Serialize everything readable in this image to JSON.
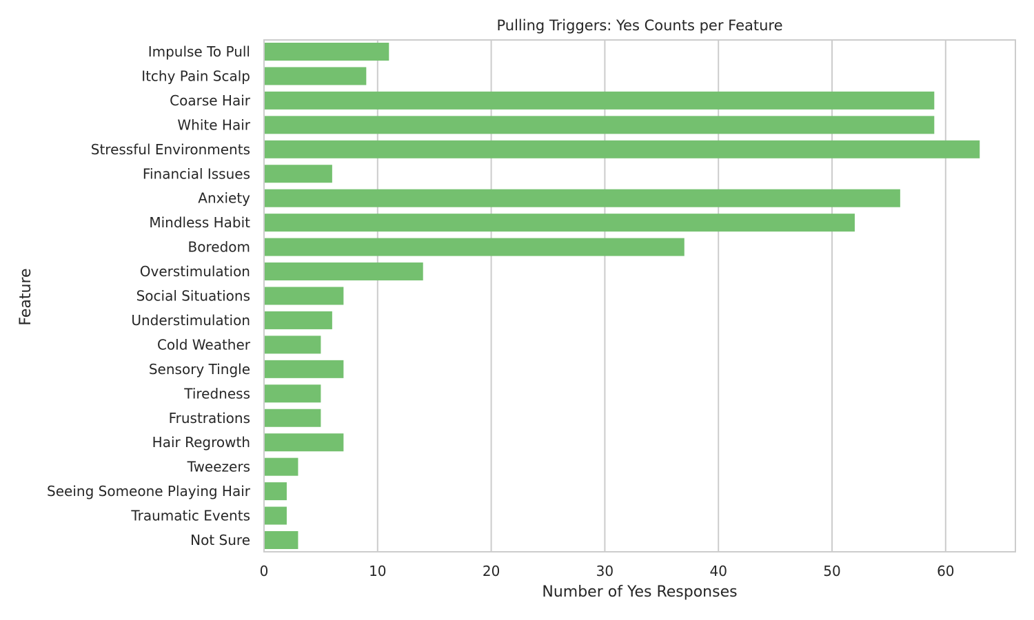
{
  "chart_data": {
    "type": "bar",
    "orientation": "horizontal",
    "title": "Pulling Triggers: Yes Counts per Feature",
    "xlabel": "Number of Yes Responses",
    "ylabel": "Feature",
    "xlim": [
      0,
      66
    ],
    "xticks": [
      0,
      10,
      20,
      30,
      40,
      50,
      60
    ],
    "grid": "vertical",
    "bar_color": "#74c06f",
    "categories": [
      "Impulse To Pull",
      "Itchy Pain Scalp",
      "Coarse Hair",
      "White Hair",
      "Stressful Environments",
      "Financial Issues",
      "Anxiety",
      "Mindless Habit",
      "Boredom",
      "Overstimulation",
      "Social Situations",
      "Understimulation",
      "Cold Weather",
      "Sensory Tingle",
      "Tiredness",
      "Frustrations",
      "Hair Regrowth",
      "Tweezers",
      "Seeing Someone Playing Hair",
      "Traumatic Events",
      "Not Sure"
    ],
    "values": [
      11,
      9,
      59,
      59,
      63,
      6,
      56,
      52,
      37,
      14,
      7,
      6,
      5,
      7,
      5,
      5,
      7,
      3,
      2,
      2,
      3
    ]
  }
}
